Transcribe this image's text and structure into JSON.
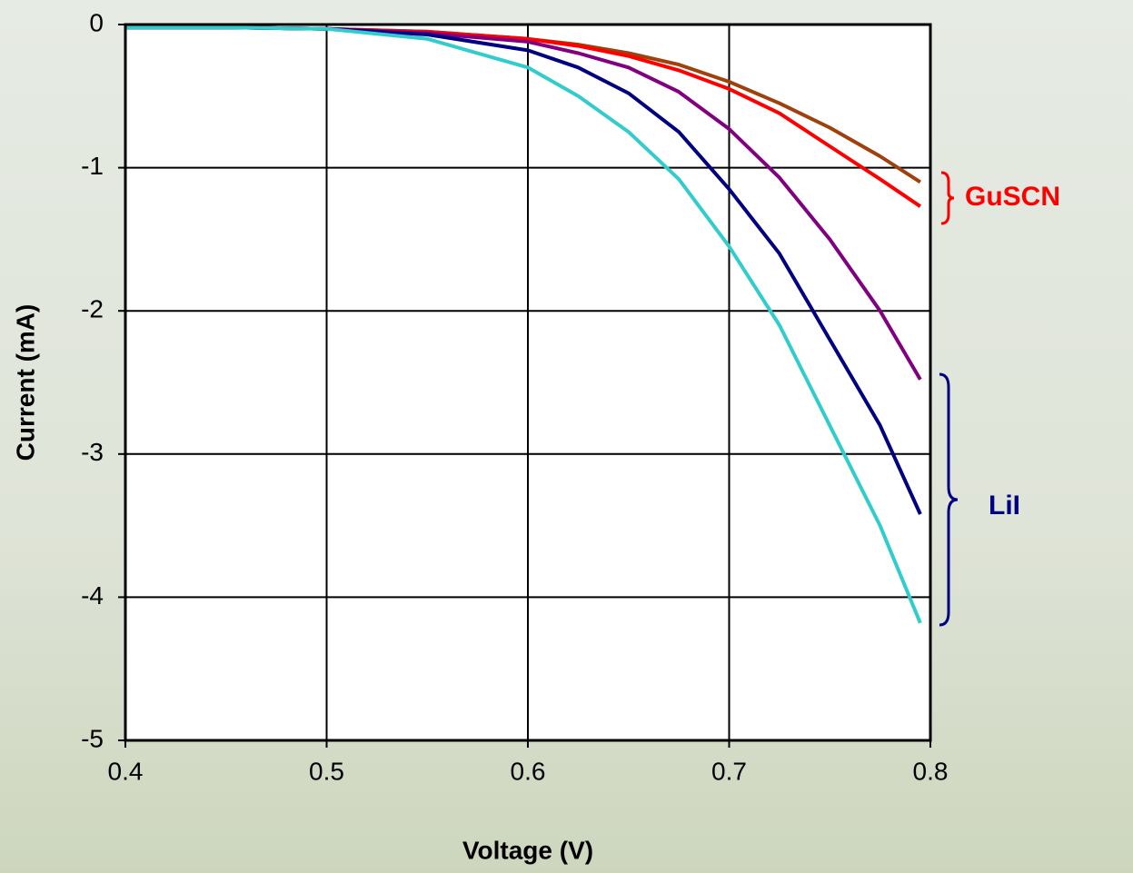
{
  "chart_data": {
    "type": "line",
    "x_label": "Voltage (V)",
    "y_label": "Current (mA)",
    "x": [
      0.4,
      0.45,
      0.5,
      0.55,
      0.6,
      0.625,
      0.65,
      0.675,
      0.7,
      0.725,
      0.75,
      0.775,
      0.795
    ],
    "series": [
      {
        "color": "#a0400a",
        "values": [
          -0.02,
          -0.02,
          -0.03,
          -0.05,
          -0.1,
          -0.14,
          -0.2,
          -0.28,
          -0.4,
          -0.55,
          -0.72,
          -0.92,
          -1.1
        ]
      },
      {
        "color": "#ff0000",
        "values": [
          -0.02,
          -0.02,
          -0.03,
          -0.05,
          -0.1,
          -0.15,
          -0.22,
          -0.32,
          -0.45,
          -0.62,
          -0.85,
          -1.08,
          -1.27
        ]
      },
      {
        "color": "#800080",
        "values": [
          -0.02,
          -0.02,
          -0.03,
          -0.06,
          -0.12,
          -0.2,
          -0.3,
          -0.47,
          -0.73,
          -1.07,
          -1.5,
          -2.0,
          -2.48
        ]
      },
      {
        "color": "#000080",
        "values": [
          -0.02,
          -0.02,
          -0.03,
          -0.07,
          -0.18,
          -0.3,
          -0.48,
          -0.75,
          -1.15,
          -1.6,
          -2.2,
          -2.8,
          -3.42
        ]
      },
      {
        "color": "#33cccc",
        "values": [
          -0.02,
          -0.02,
          -0.03,
          -0.1,
          -0.3,
          -0.5,
          -0.75,
          -1.08,
          -1.55,
          -2.1,
          -2.8,
          -3.5,
          -4.18
        ]
      }
    ],
    "xlim": [
      0.4,
      0.8
    ],
    "xticks": [
      0.4,
      0.5,
      0.6,
      0.7,
      0.8
    ],
    "ylim": [
      -5,
      0
    ],
    "yticks": [
      -5,
      -4,
      -3,
      -2,
      -1,
      0
    ],
    "grid": true,
    "annotations": [
      {
        "text": "GuSCN",
        "color": "#ff0000"
      },
      {
        "text": "LiI",
        "color": "#000080"
      }
    ]
  }
}
